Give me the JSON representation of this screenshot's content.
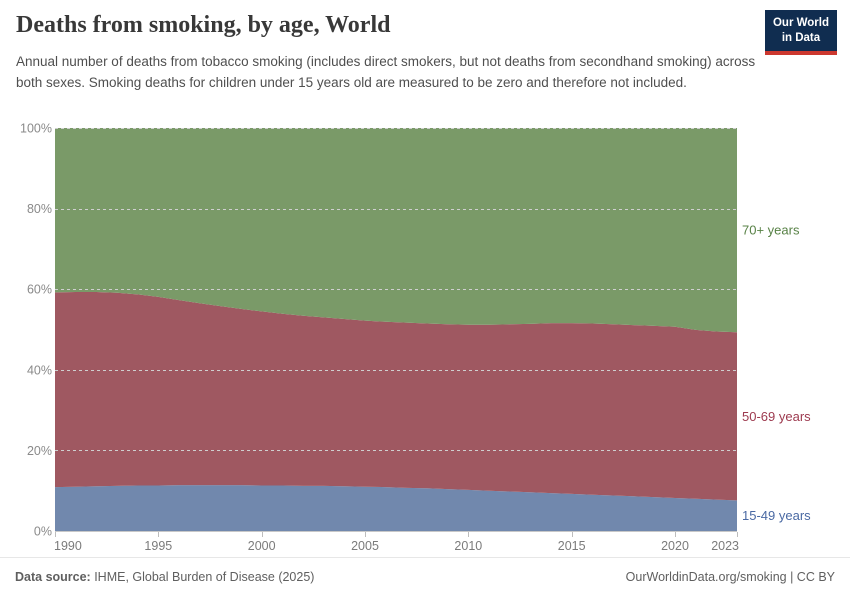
{
  "header": {
    "title": "Deaths from smoking, by age, World",
    "subtitle": "Annual number of deaths from tobacco smoking (includes direct smokers, but not deaths from secondhand smoking) across both sexes. Smoking deaths for children under 15 years old are measured to be zero and therefore not included.",
    "logo": {
      "line1": "Our World",
      "line2": "in Data",
      "bg": "#102d50",
      "accent": "#cc382f"
    }
  },
  "chart_data": {
    "type": "area",
    "stacked": true,
    "normalized_percent": true,
    "title": "Deaths from smoking, by age, World",
    "xlabel": "",
    "ylabel": "",
    "ylim": [
      0,
      100
    ],
    "grid": "dashed-horizontal",
    "x": [
      1990,
      1991,
      1992,
      1993,
      1994,
      1995,
      1996,
      1997,
      1998,
      1999,
      2000,
      2001,
      2002,
      2003,
      2004,
      2005,
      2006,
      2007,
      2008,
      2009,
      2010,
      2011,
      2012,
      2013,
      2014,
      2015,
      2016,
      2017,
      2018,
      2019,
      2020,
      2021,
      2022,
      2023
    ],
    "series": [
      {
        "name": "15-49 years",
        "color": "#7188ad",
        "label_color": "#4a69a3",
        "values": [
          10.9,
          11.0,
          11.1,
          11.2,
          11.3,
          11.3,
          11.4,
          11.4,
          11.4,
          11.4,
          11.3,
          11.3,
          11.2,
          11.2,
          11.1,
          11.0,
          10.9,
          10.7,
          10.6,
          10.4,
          10.2,
          10.0,
          9.8,
          9.6,
          9.4,
          9.2,
          9.0,
          8.8,
          8.6,
          8.4,
          8.2,
          8.0,
          7.8,
          7.6
        ]
      },
      {
        "name": "50-69 years",
        "color": "#9f5861",
        "label_color": "#9d3a4f",
        "values": [
          48.3,
          48.3,
          48.2,
          47.9,
          47.4,
          46.8,
          45.9,
          45.1,
          44.4,
          43.7,
          43.2,
          42.6,
          42.2,
          41.8,
          41.5,
          41.2,
          41.0,
          41.0,
          40.9,
          40.9,
          41.0,
          41.2,
          41.5,
          41.8,
          42.2,
          42.4,
          42.5,
          42.5,
          42.5,
          42.5,
          42.5,
          41.9,
          41.7,
          41.7
        ]
      },
      {
        "name": "70+ years",
        "color": "#7a9a68",
        "label_color": "#578145",
        "values": [
          40.8,
          40.7,
          40.7,
          40.9,
          41.3,
          41.9,
          42.7,
          43.5,
          44.2,
          44.9,
          45.5,
          46.1,
          46.6,
          47.0,
          47.4,
          47.8,
          48.1,
          48.3,
          48.5,
          48.7,
          48.8,
          48.8,
          48.7,
          48.6,
          48.4,
          48.4,
          48.5,
          48.7,
          48.9,
          49.1,
          49.3,
          50.1,
          50.5,
          50.7
        ]
      }
    ],
    "yticks": [
      "0%",
      "20%",
      "40%",
      "60%",
      "80%",
      "100%"
    ],
    "xticks": [
      1990,
      1995,
      2000,
      2005,
      2010,
      2015,
      2020,
      2023
    ],
    "legend_position": "right-of-area-labels"
  },
  "footer": {
    "datasource_label": "Data source:",
    "datasource": " IHME, Global Burden of Disease (2025)",
    "credit": "OurWorldinData.org/smoking | CC BY"
  }
}
